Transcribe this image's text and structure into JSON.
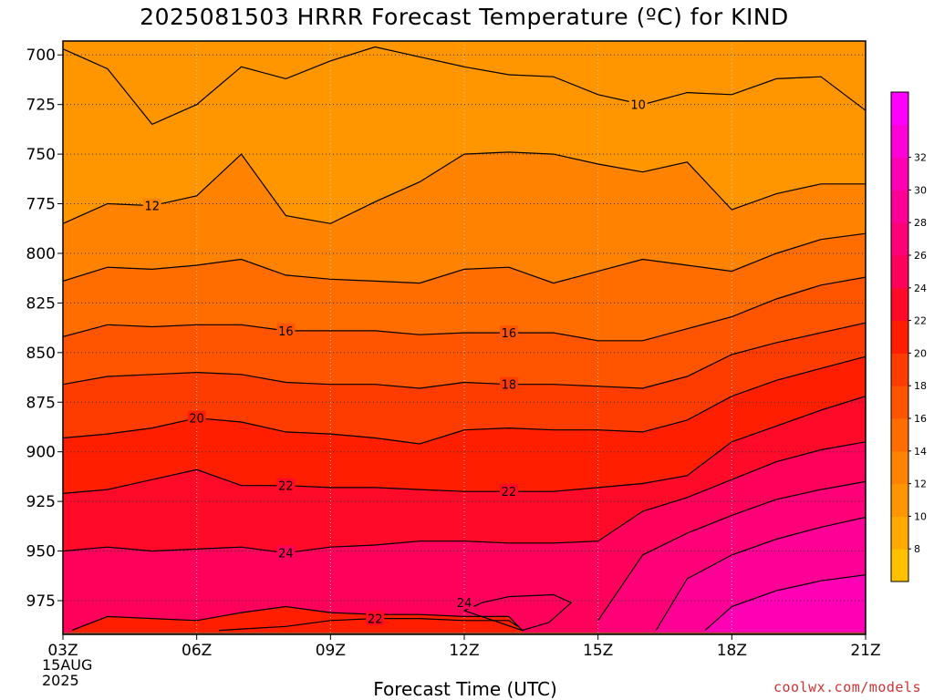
{
  "title": "2025081503 HRRR Forecast Temperature (ºC) for KIND",
  "xlabel": "Forecast Time (UTC)",
  "date_label": [
    "15AUG",
    "2025"
  ],
  "watermark": "coolwx.com/models",
  "chart_data": {
    "type": "heatmap",
    "title": "2025081503 HRRR Forecast Temperature (ºC) for KIND",
    "xlabel": "Forecast Time (UTC)",
    "ylabel": "",
    "x_ticks": [
      "03Z",
      "06Z",
      "09Z",
      "12Z",
      "15Z",
      "18Z",
      "21Z"
    ],
    "x_hours": [
      3,
      6,
      9,
      12,
      15,
      18,
      21
    ],
    "xlim": [
      3,
      21
    ],
    "y_ticks": [
      700,
      725,
      750,
      775,
      800,
      825,
      850,
      875,
      900,
      925,
      950,
      975
    ],
    "ylim": [
      992,
      693
    ],
    "y_axis": "pressure (hPa), inverted",
    "grid": true,
    "colorbar": {
      "placement": "right",
      "labels": [
        8,
        10,
        12,
        14,
        16,
        18,
        20,
        22,
        24,
        26,
        28,
        30,
        32
      ],
      "levels": [
        6,
        8,
        10,
        12,
        14,
        16,
        18,
        20,
        22,
        24,
        26,
        28,
        30,
        32,
        34
      ],
      "colors": [
        "#ffc000",
        "#ffaa00",
        "#ff9600",
        "#ff8200",
        "#ff6c00",
        "#ff5500",
        "#ff3c00",
        "#ff1e00",
        "#ff0a28",
        "#ff005a",
        "#ff0078",
        "#ff0096",
        "#ff00b4",
        "#ff00d8",
        "#ff00ff"
      ]
    },
    "ground_color": "#a0522d",
    "contour_values": [
      10,
      12,
      14,
      16,
      18,
      20,
      22,
      24,
      26,
      28,
      30
    ],
    "contour_labels": [
      {
        "value": "10",
        "hour": 15.9,
        "p": 725
      },
      {
        "value": "12",
        "hour": 5.0,
        "p": 776
      },
      {
        "value": "16",
        "hour": 8.0,
        "p": 839
      },
      {
        "value": "16",
        "hour": 13.0,
        "p": 840
      },
      {
        "value": "18",
        "hour": 13.0,
        "p": 866
      },
      {
        "value": "20",
        "hour": 6.0,
        "p": 883
      },
      {
        "value": "22",
        "hour": 8.0,
        "p": 917
      },
      {
        "value": "22",
        "hour": 13.0,
        "p": 920
      },
      {
        "value": "24",
        "hour": 8.0,
        "p": 951
      },
      {
        "value": "24",
        "hour": 12.0,
        "p": 976
      },
      {
        "value": "22",
        "hour": 10.0,
        "p": 984
      }
    ],
    "isotherms": [
      {
        "value": 10,
        "points": [
          [
            3,
            697
          ],
          [
            4,
            707
          ],
          [
            5,
            735
          ],
          [
            6,
            725
          ],
          [
            7,
            706
          ],
          [
            8,
            712
          ],
          [
            9,
            703
          ],
          [
            10,
            696
          ],
          [
            11,
            701
          ],
          [
            12,
            706
          ],
          [
            13,
            710
          ],
          [
            14,
            711
          ],
          [
            15,
            720
          ],
          [
            16,
            725
          ],
          [
            17,
            719
          ],
          [
            18,
            720
          ],
          [
            19,
            712
          ],
          [
            20,
            711
          ],
          [
            21,
            728
          ]
        ]
      },
      {
        "value": 12,
        "points": [
          [
            3,
            785
          ],
          [
            4,
            775
          ],
          [
            5,
            776
          ],
          [
            6,
            771
          ],
          [
            7,
            750
          ],
          [
            8,
            781
          ],
          [
            9,
            785
          ],
          [
            10,
            774
          ],
          [
            11,
            764
          ],
          [
            12,
            750
          ],
          [
            13,
            749
          ],
          [
            14,
            750
          ],
          [
            15,
            755
          ],
          [
            16,
            759
          ],
          [
            17,
            754
          ],
          [
            18,
            778
          ],
          [
            19,
            770
          ],
          [
            20,
            765
          ],
          [
            21,
            765
          ]
        ]
      },
      {
        "value": 14,
        "points": [
          [
            3,
            814
          ],
          [
            4,
            807
          ],
          [
            5,
            808
          ],
          [
            6,
            806
          ],
          [
            7,
            803
          ],
          [
            8,
            811
          ],
          [
            9,
            813
          ],
          [
            10,
            814
          ],
          [
            11,
            815
          ],
          [
            12,
            808
          ],
          [
            13,
            807
          ],
          [
            14,
            815
          ],
          [
            15,
            809
          ],
          [
            16,
            803
          ],
          [
            17,
            806
          ],
          [
            18,
            809
          ],
          [
            19,
            800
          ],
          [
            20,
            793
          ],
          [
            21,
            790
          ]
        ]
      },
      {
        "value": 16,
        "points": [
          [
            3,
            842
          ],
          [
            4,
            836
          ],
          [
            5,
            837
          ],
          [
            6,
            836
          ],
          [
            7,
            836
          ],
          [
            8,
            839
          ],
          [
            9,
            839
          ],
          [
            10,
            839
          ],
          [
            11,
            841
          ],
          [
            12,
            840
          ],
          [
            13,
            840
          ],
          [
            14,
            840
          ],
          [
            15,
            844
          ],
          [
            16,
            844
          ],
          [
            17,
            838
          ],
          [
            18,
            832
          ],
          [
            19,
            823
          ],
          [
            20,
            816
          ],
          [
            21,
            812
          ]
        ]
      },
      {
        "value": 18,
        "points": [
          [
            3,
            866
          ],
          [
            4,
            862
          ],
          [
            5,
            861
          ],
          [
            6,
            860
          ],
          [
            7,
            861
          ],
          [
            8,
            865
          ],
          [
            9,
            866
          ],
          [
            10,
            866
          ],
          [
            11,
            868
          ],
          [
            12,
            865
          ],
          [
            13,
            866
          ],
          [
            14,
            866
          ],
          [
            15,
            867
          ],
          [
            16,
            868
          ],
          [
            17,
            862
          ],
          [
            18,
            851
          ],
          [
            19,
            845
          ],
          [
            20,
            840
          ],
          [
            21,
            835
          ]
        ]
      },
      {
        "value": 20,
        "points": [
          [
            3,
            893
          ],
          [
            4,
            891
          ],
          [
            5,
            888
          ],
          [
            6,
            883
          ],
          [
            7,
            885
          ],
          [
            8,
            890
          ],
          [
            9,
            891
          ],
          [
            10,
            893
          ],
          [
            11,
            896
          ],
          [
            12,
            889
          ],
          [
            13,
            888
          ],
          [
            14,
            889
          ],
          [
            15,
            889
          ],
          [
            16,
            890
          ],
          [
            17,
            884
          ],
          [
            18,
            872
          ],
          [
            19,
            864
          ],
          [
            20,
            858
          ],
          [
            21,
            852
          ]
        ]
      },
      {
        "value": 22,
        "points": [
          [
            3,
            921
          ],
          [
            4,
            919
          ],
          [
            5,
            914
          ],
          [
            6,
            909
          ],
          [
            7,
            917
          ],
          [
            8,
            917
          ],
          [
            9,
            918
          ],
          [
            10,
            918
          ],
          [
            11,
            919
          ],
          [
            12,
            920
          ],
          [
            13,
            920
          ],
          [
            14,
            920
          ],
          [
            15,
            918
          ],
          [
            16,
            916
          ],
          [
            17,
            912
          ],
          [
            18,
            895
          ],
          [
            19,
            887
          ],
          [
            20,
            879
          ],
          [
            21,
            872
          ]
        ]
      },
      {
        "value": 24,
        "points": [
          [
            3,
            950
          ],
          [
            4,
            948
          ],
          [
            5,
            950
          ],
          [
            6,
            949
          ],
          [
            7,
            948
          ],
          [
            8,
            951
          ],
          [
            9,
            948
          ],
          [
            10,
            947
          ],
          [
            11,
            945
          ],
          [
            12,
            945
          ],
          [
            13,
            946
          ],
          [
            14,
            946
          ],
          [
            15,
            945
          ],
          [
            16,
            930
          ],
          [
            17,
            923
          ],
          [
            18,
            914
          ],
          [
            19,
            905
          ],
          [
            20,
            899
          ],
          [
            21,
            895
          ]
        ]
      },
      {
        "value": 26,
        "points": [
          [
            15.0,
            985
          ],
          [
            16.0,
            952
          ],
          [
            17.0,
            941
          ],
          [
            18.0,
            932
          ],
          [
            19.0,
            924
          ],
          [
            20.0,
            919
          ],
          [
            21.0,
            915
          ]
        ]
      },
      {
        "value": 28,
        "points": [
          [
            16.3,
            990
          ],
          [
            17.0,
            964
          ],
          [
            18.0,
            952
          ],
          [
            19.0,
            944
          ],
          [
            20.0,
            938
          ],
          [
            21.0,
            933
          ]
        ]
      },
      {
        "value": 30,
        "points": [
          [
            17.4,
            990
          ],
          [
            18.0,
            978
          ],
          [
            19.0,
            970
          ],
          [
            20.0,
            965
          ],
          [
            21.0,
            962
          ]
        ]
      },
      {
        "value": 24,
        "points": [
          [
            12.0,
            980
          ],
          [
            12.4,
            976
          ],
          [
            13.0,
            973
          ],
          [
            14.0,
            972
          ],
          [
            14.4,
            976
          ],
          [
            13.9,
            986
          ],
          [
            13.3,
            990
          ]
        ]
      },
      {
        "value": 22,
        "points": [
          [
            3.2,
            990
          ],
          [
            4.0,
            983
          ],
          [
            5.0,
            984
          ],
          [
            6.0,
            985
          ],
          [
            7.0,
            981
          ],
          [
            8.0,
            978
          ],
          [
            9.0,
            981
          ],
          [
            10.0,
            982
          ],
          [
            11.0,
            982
          ],
          [
            12.0,
            983
          ],
          [
            13.0,
            983
          ],
          [
            13.3,
            990
          ]
        ]
      },
      {
        "value": 22,
        "points": [
          [
            6.5,
            990
          ],
          [
            8.0,
            988
          ],
          [
            9.0,
            985
          ],
          [
            10.0,
            984
          ],
          [
            11.0,
            984
          ],
          [
            12.0,
            985
          ],
          [
            13.0,
            985
          ],
          [
            13.2,
            988
          ]
        ]
      }
    ]
  }
}
